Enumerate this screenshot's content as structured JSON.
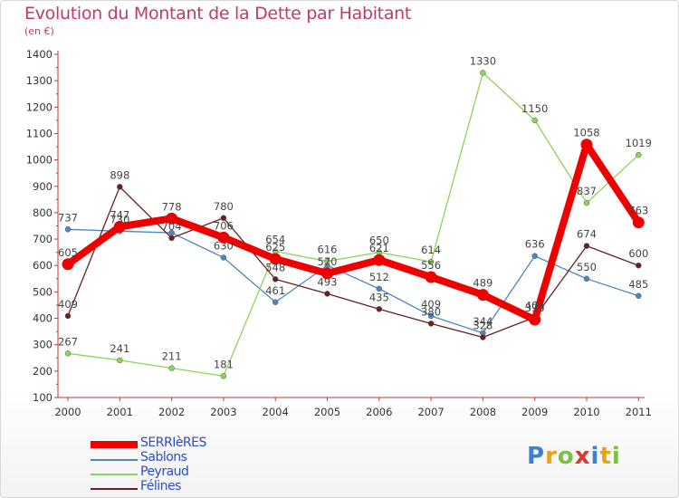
{
  "header": {
    "title": "Evolution du Montant de la Dette par Habitant",
    "subtitle": "(en €)"
  },
  "logo": {
    "text": "Proxiti",
    "letters": [
      "P",
      "r",
      "o",
      "x",
      "i",
      "t",
      "i"
    ]
  },
  "chart_data": {
    "type": "line",
    "categories": [
      "2000",
      "2001",
      "2002",
      "2003",
      "2004",
      "2005",
      "2006",
      "2007",
      "2008",
      "2009",
      "2010",
      "2011"
    ],
    "ylim": [
      100,
      1400
    ],
    "yticks": [
      100,
      200,
      300,
      400,
      500,
      600,
      700,
      800,
      900,
      1000,
      1100,
      1200,
      1300,
      1400
    ],
    "grid": false,
    "legend_position": "bottom-left",
    "series": [
      {
        "name": "Sablons",
        "color": "#4f86c0",
        "width": 1.3,
        "marker": 3,
        "values": [
          737,
          730,
          724,
          630,
          461,
          600,
          512,
          409,
          344,
          636,
          550,
          485
        ],
        "labels": [
          737,
          730,
          null,
          630,
          461,
          null,
          512,
          409,
          344,
          636,
          550,
          485
        ]
      },
      {
        "name": "Peyraud",
        "color": "#8fd35a",
        "width": 1.3,
        "marker": 3,
        "values": [
          267,
          241,
          211,
          181,
          654,
          616,
          650,
          614,
          1330,
          1150,
          837,
          1019
        ],
        "labels": [
          267,
          241,
          211,
          181,
          654,
          616,
          650,
          614,
          1330,
          1150,
          837,
          1019
        ]
      },
      {
        "name": "Félines",
        "color": "#6b1f1f",
        "width": 1.3,
        "marker": 3,
        "values": [
          409,
          898,
          704,
          780,
          548,
          493,
          435,
          380,
          328,
          404,
          674,
          600
        ],
        "labels": [
          409,
          898,
          704,
          780,
          548,
          493,
          435,
          380,
          328,
          404,
          674,
          600
        ]
      },
      {
        "name": "SERRIèRES",
        "color": "#ee0000",
        "width": 8,
        "marker": 6.5,
        "values": [
          605,
          747,
          778,
          706,
          625,
          570,
          621,
          556,
          489,
          395,
          1058,
          763
        ],
        "labels": [
          605,
          747,
          778,
          706,
          625,
          570,
          621,
          556,
          489,
          395,
          1058,
          763
        ]
      }
    ],
    "legend_order": [
      "SERRIèRES",
      "Sablons",
      "Peyraud",
      "Félines"
    ]
  }
}
